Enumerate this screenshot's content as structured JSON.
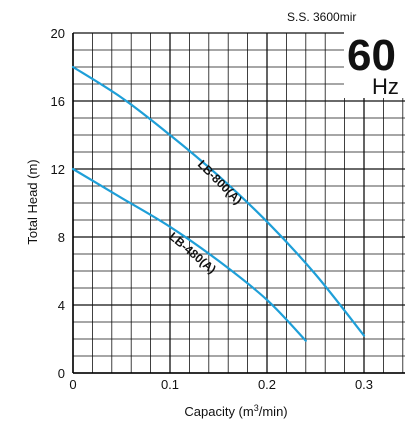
{
  "chart_data": {
    "type": "line",
    "title": "",
    "xlabel": "Capacity (m³/min)",
    "xlabel_parts": {
      "pre": "Capacity (m",
      "sup": "3",
      "post": "/min)"
    },
    "ylabel": "Total Head (m)",
    "xlim": [
      0,
      0.33
    ],
    "ylim": [
      0,
      20
    ],
    "x_ticks": [
      0,
      0.1,
      0.2,
      0.3
    ],
    "x_tick_labels": [
      "0",
      "0.1",
      "0.2",
      "0.3"
    ],
    "y_ticks": [
      0,
      4,
      8,
      12,
      16,
      20
    ],
    "y_tick_labels": [
      "0",
      "4",
      "8",
      "12",
      "16",
      "20"
    ],
    "grid": true,
    "series": [
      {
        "name": "LB-800(A)",
        "color": "#1e9fd8",
        "x": [
          0,
          0.05,
          0.1,
          0.15,
          0.2,
          0.25,
          0.3
        ],
        "y": [
          18,
          16.2,
          14,
          11.6,
          8.9,
          5.8,
          2.2
        ]
      },
      {
        "name": "LB-480(A)",
        "color": "#1e9fd8",
        "x": [
          0,
          0.05,
          0.1,
          0.15,
          0.2,
          0.24
        ],
        "y": [
          12,
          10.3,
          8.6,
          6.6,
          4.3,
          1.9
        ]
      }
    ]
  },
  "speed_label": "S.S. 3600mir",
  "frequency": {
    "value": "60",
    "unit": "Hz"
  }
}
